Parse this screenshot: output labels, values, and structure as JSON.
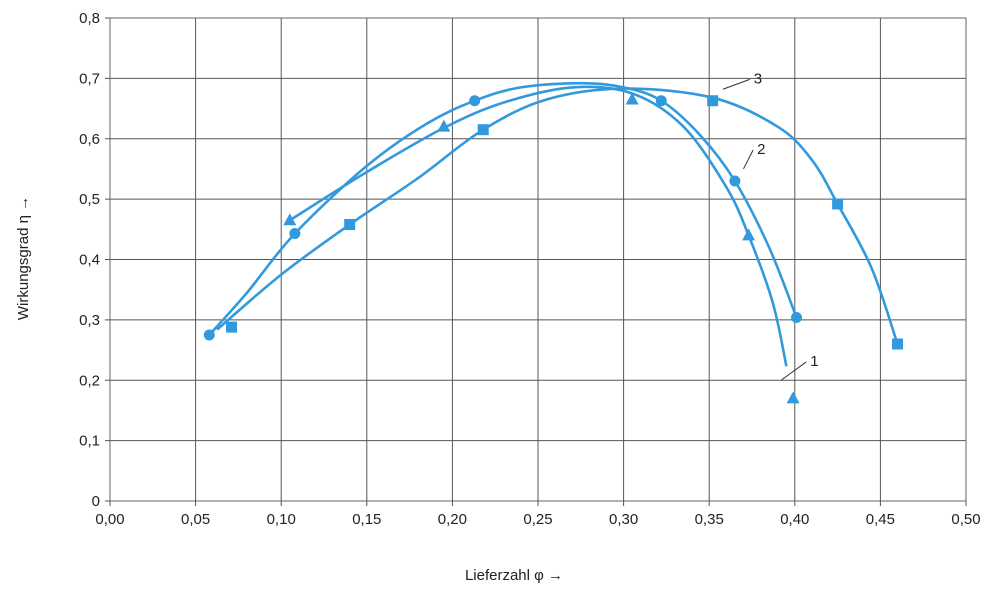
{
  "chart_data": {
    "type": "line",
    "xlabel": "Lieferzahl φ →",
    "ylabel": "Wirkungsgrad η →",
    "xlim": [
      0,
      0.5
    ],
    "ylim": [
      0,
      0.8
    ],
    "x_ticks": [
      0.0,
      0.05,
      0.1,
      0.15,
      0.2,
      0.25,
      0.3,
      0.35,
      0.4,
      0.45,
      0.5
    ],
    "x_tick_labels": [
      "0,00",
      "0,05",
      "0,10",
      "0,15",
      "0,20",
      "0,25",
      "0,30",
      "0,35",
      "0,40",
      "0,45",
      "0,50"
    ],
    "y_ticks": [
      0,
      0.1,
      0.2,
      0.3,
      0.4,
      0.5,
      0.6,
      0.7,
      0.8
    ],
    "y_tick_labels": [
      "0",
      "0,1",
      "0,2",
      "0,3",
      "0,4",
      "0,5",
      "0,6",
      "0,7",
      "0,8"
    ],
    "grid": true,
    "line_color": "#3399dd",
    "series": [
      {
        "name": "1",
        "marker": "triangle",
        "points": [
          [
            0.105,
            0.465
          ],
          [
            0.195,
            0.62
          ],
          [
            0.305,
            0.665
          ],
          [
            0.373,
            0.44
          ],
          [
            0.399,
            0.17
          ]
        ],
        "curve": [
          [
            0.105,
            0.465
          ],
          [
            0.15,
            0.545
          ],
          [
            0.195,
            0.618
          ],
          [
            0.23,
            0.66
          ],
          [
            0.27,
            0.685
          ],
          [
            0.305,
            0.675
          ],
          [
            0.335,
            0.62
          ],
          [
            0.36,
            0.52
          ],
          [
            0.373,
            0.44
          ],
          [
            0.387,
            0.33
          ],
          [
            0.395,
            0.225
          ]
        ]
      },
      {
        "name": "2",
        "marker": "circle",
        "points": [
          [
            0.058,
            0.275
          ],
          [
            0.108,
            0.443
          ],
          [
            0.213,
            0.663
          ],
          [
            0.322,
            0.663
          ],
          [
            0.365,
            0.53
          ],
          [
            0.401,
            0.304
          ]
        ],
        "curve": [
          [
            0.058,
            0.275
          ],
          [
            0.08,
            0.345
          ],
          [
            0.108,
            0.443
          ],
          [
            0.15,
            0.555
          ],
          [
            0.185,
            0.625
          ],
          [
            0.213,
            0.663
          ],
          [
            0.24,
            0.685
          ],
          [
            0.275,
            0.692
          ],
          [
            0.3,
            0.685
          ],
          [
            0.322,
            0.663
          ],
          [
            0.345,
            0.605
          ],
          [
            0.365,
            0.53
          ],
          [
            0.385,
            0.42
          ],
          [
            0.401,
            0.304
          ]
        ]
      },
      {
        "name": "3",
        "marker": "square",
        "points": [
          [
            0.071,
            0.288
          ],
          [
            0.14,
            0.458
          ],
          [
            0.218,
            0.615
          ],
          [
            0.352,
            0.663
          ],
          [
            0.425,
            0.492
          ],
          [
            0.46,
            0.26
          ]
        ],
        "curve": [
          [
            0.063,
            0.285
          ],
          [
            0.1,
            0.375
          ],
          [
            0.14,
            0.458
          ],
          [
            0.18,
            0.535
          ],
          [
            0.218,
            0.615
          ],
          [
            0.255,
            0.665
          ],
          [
            0.3,
            0.683
          ],
          [
            0.352,
            0.668
          ],
          [
            0.39,
            0.62
          ],
          [
            0.41,
            0.565
          ],
          [
            0.425,
            0.492
          ],
          [
            0.445,
            0.385
          ],
          [
            0.46,
            0.26
          ]
        ]
      }
    ],
    "annotations": [
      {
        "text": "1",
        "at": [
          0.409,
          0.227
        ],
        "points_to": [
          0.392,
          0.2
        ]
      },
      {
        "text": "2",
        "at": [
          0.378,
          0.578
        ],
        "points_to": [
          0.37,
          0.55
        ]
      },
      {
        "text": "3",
        "at": [
          0.376,
          0.695
        ],
        "points_to": [
          0.358,
          0.682
        ]
      }
    ]
  }
}
